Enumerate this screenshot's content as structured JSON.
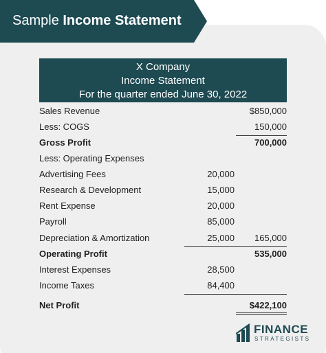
{
  "banner": {
    "prefix": "Sample",
    "title": "Income Statement"
  },
  "table": {
    "header": [
      "X Company",
      "Income Statement",
      "For the quarter ended June 30, 2022"
    ],
    "rows": [
      {
        "label": "Sales Revenue",
        "total": "$850,000"
      },
      {
        "label": "Less: COGS",
        "total": "150,000"
      },
      {
        "label": "Gross Profit",
        "total": "700,000"
      },
      {
        "label": "Less: Operating Expenses"
      },
      {
        "label": "Advertising Fees",
        "amount": "20,000"
      },
      {
        "label": "Research & Development",
        "amount": "15,000"
      },
      {
        "label": "Rent Expense",
        "amount": "20,000"
      },
      {
        "label": "Payroll",
        "amount": "85,000"
      },
      {
        "label": "Depreciation & Amortization",
        "amount": "25,000",
        "total": "165,000"
      },
      {
        "label": "Operating Profit",
        "total": "535,000"
      },
      {
        "label": "Interest Expenses",
        "amount": "28,500"
      },
      {
        "label": "Income Taxes",
        "amount": "84,400"
      },
      {
        "label": "Net Profit",
        "total": "$422,100"
      }
    ]
  },
  "logo": {
    "name": "FINANCE",
    "sub": "STRATEGISTS"
  }
}
